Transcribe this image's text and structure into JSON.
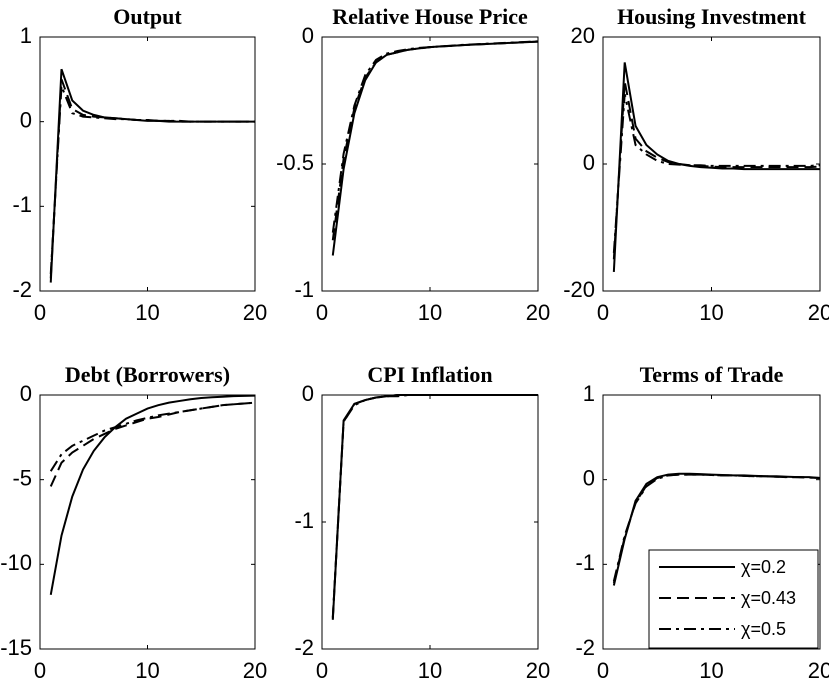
{
  "chart_data": [
    {
      "type": "line",
      "title": "Output",
      "x": [
        1,
        2,
        3,
        4,
        5,
        6,
        7,
        8,
        9,
        10,
        11,
        12,
        13,
        14,
        15,
        16,
        17,
        18,
        19,
        20
      ],
      "xlim": [
        0,
        20
      ],
      "xticks": [
        0,
        10,
        20
      ],
      "ylim": [
        -2,
        1
      ],
      "yticks": [
        -2,
        -1,
        0,
        1
      ],
      "series": [
        {
          "color": "#000000",
          "style": "solid",
          "values": [
            -1.9,
            0.62,
            0.25,
            0.13,
            0.08,
            0.05,
            0.04,
            0.03,
            0.02,
            0.01,
            0.01,
            0,
            0,
            0,
            0,
            0,
            0,
            0,
            0,
            0
          ]
        },
        {
          "color": "#000000",
          "style": "dashed",
          "values": [
            -1.85,
            0.5,
            0.15,
            0.08,
            0.06,
            0.05,
            0.04,
            0.03,
            0.02,
            0.02,
            0.01,
            0.01,
            0,
            0,
            0,
            0,
            0,
            0,
            0,
            0
          ]
        },
        {
          "color": "#000000",
          "style": "dashdot",
          "values": [
            -1.8,
            0.42,
            0.1,
            0.06,
            0.05,
            0.04,
            0.03,
            0.03,
            0.02,
            0.02,
            0.01,
            0.01,
            0.01,
            0,
            0,
            0,
            0,
            0,
            0,
            0
          ]
        }
      ]
    },
    {
      "type": "line",
      "title": "Relative House Price",
      "x": [
        1,
        2,
        3,
        4,
        5,
        6,
        7,
        8,
        9,
        10,
        11,
        12,
        13,
        14,
        15,
        16,
        17,
        18,
        19,
        20
      ],
      "xlim": [
        0,
        20
      ],
      "xticks": [
        0,
        10,
        20
      ],
      "ylim": [
        -1,
        0
      ],
      "yticks": [
        -1,
        -0.5,
        0
      ],
      "series": [
        {
          "color": "#000000",
          "style": "solid",
          "values": [
            -0.86,
            -0.52,
            -0.3,
            -0.17,
            -0.1,
            -0.07,
            -0.06,
            -0.05,
            -0.045,
            -0.04,
            -0.037,
            -0.035,
            -0.032,
            -0.03,
            -0.028,
            -0.026,
            -0.024,
            -0.022,
            -0.02,
            -0.018
          ]
        },
        {
          "color": "#000000",
          "style": "dashed",
          "values": [
            -0.8,
            -0.48,
            -0.28,
            -0.16,
            -0.1,
            -0.07,
            -0.06,
            -0.05,
            -0.045,
            -0.04,
            -0.037,
            -0.035,
            -0.032,
            -0.03,
            -0.028,
            -0.026,
            -0.024,
            -0.022,
            -0.02,
            -0.018
          ]
        },
        {
          "color": "#000000",
          "style": "dashdot",
          "values": [
            -0.77,
            -0.46,
            -0.27,
            -0.15,
            -0.09,
            -0.065,
            -0.055,
            -0.048,
            -0.043,
            -0.04,
            -0.037,
            -0.034,
            -0.031,
            -0.029,
            -0.027,
            -0.025,
            -0.023,
            -0.021,
            -0.019,
            -0.017
          ]
        }
      ]
    },
    {
      "type": "line",
      "title": "Housing Investment",
      "x": [
        1,
        2,
        3,
        4,
        5,
        6,
        7,
        8,
        9,
        10,
        11,
        12,
        13,
        14,
        15,
        16,
        17,
        18,
        19,
        20
      ],
      "xlim": [
        0,
        20
      ],
      "xticks": [
        0,
        10,
        20
      ],
      "ylim": [
        -20,
        20
      ],
      "yticks": [
        -20,
        0,
        20
      ],
      "series": [
        {
          "color": "#000000",
          "style": "solid",
          "values": [
            -17,
            16,
            6,
            3,
            1.5,
            0.5,
            0,
            -0.3,
            -0.5,
            -0.6,
            -0.7,
            -0.7,
            -0.8,
            -0.8,
            -0.8,
            -0.8,
            -0.8,
            -0.8,
            -0.8,
            -0.8
          ]
        },
        {
          "color": "#000000",
          "style": "dashed",
          "values": [
            -15,
            13,
            4,
            2,
            1,
            0.3,
            0,
            -0.2,
            -0.3,
            -0.4,
            -0.5,
            -0.5,
            -0.5,
            -0.5,
            -0.5,
            -0.5,
            -0.5,
            -0.5,
            -0.5,
            -0.4
          ]
        },
        {
          "color": "#000000",
          "style": "dashdot",
          "values": [
            -14,
            11,
            3,
            1.5,
            0.5,
            0,
            -0.1,
            -0.2,
            -0.2,
            -0.3,
            -0.3,
            -0.3,
            -0.3,
            -0.3,
            -0.3,
            -0.3,
            -0.3,
            -0.3,
            -0.3,
            -0.2
          ]
        }
      ]
    },
    {
      "type": "line",
      "title": "Debt (Borrowers)",
      "x": [
        1,
        2,
        3,
        4,
        5,
        6,
        7,
        8,
        9,
        10,
        11,
        12,
        13,
        14,
        15,
        16,
        17,
        18,
        19,
        20
      ],
      "xlim": [
        0,
        20
      ],
      "xticks": [
        0,
        10,
        20
      ],
      "ylim": [
        -15,
        0
      ],
      "yticks": [
        -15,
        -10,
        -5,
        0
      ],
      "series": [
        {
          "color": "#000000",
          "style": "solid",
          "values": [
            -11.8,
            -8.3,
            -6,
            -4.4,
            -3.3,
            -2.5,
            -1.9,
            -1.4,
            -1.1,
            -0.8,
            -0.6,
            -0.45,
            -0.35,
            -0.25,
            -0.18,
            -0.13,
            -0.1,
            -0.07,
            -0.05,
            -0.04
          ]
        },
        {
          "color": "#000000",
          "style": "dashed",
          "values": [
            -5.4,
            -4,
            -3.4,
            -3,
            -2.6,
            -2.3,
            -2,
            -1.8,
            -1.6,
            -1.4,
            -1.3,
            -1.15,
            -1,
            -0.9,
            -0.8,
            -0.7,
            -0.6,
            -0.55,
            -0.5,
            -0.45
          ]
        },
        {
          "color": "#000000",
          "style": "dashdot",
          "values": [
            -4.5,
            -3.5,
            -3,
            -2.7,
            -2.4,
            -2.1,
            -1.9,
            -1.7,
            -1.5,
            -1.35,
            -1.2,
            -1.1,
            -1,
            -0.9,
            -0.8,
            -0.7,
            -0.6,
            -0.55,
            -0.5,
            -0.45
          ]
        }
      ]
    },
    {
      "type": "line",
      "title": "CPI Inflation",
      "x": [
        1,
        2,
        3,
        4,
        5,
        6,
        7,
        8,
        9,
        10,
        11,
        12,
        13,
        14,
        15,
        16,
        17,
        18,
        19,
        20
      ],
      "xlim": [
        0,
        20
      ],
      "xticks": [
        0,
        10,
        20
      ],
      "ylim": [
        -2,
        0
      ],
      "yticks": [
        -2,
        -1,
        0
      ],
      "series": [
        {
          "color": "#000000",
          "style": "solid",
          "values": [
            -1.77,
            -0.2,
            -0.07,
            -0.04,
            -0.02,
            -0.01,
            0,
            0,
            0,
            0,
            0,
            0,
            0,
            0,
            0,
            0,
            0,
            0,
            0,
            0
          ]
        },
        {
          "color": "#000000",
          "style": "dashed",
          "values": [
            -1.76,
            -0.21,
            -0.07,
            -0.04,
            -0.02,
            -0.01,
            0,
            0,
            0,
            0,
            0,
            0,
            0,
            0,
            0,
            0,
            0,
            0,
            0,
            0
          ]
        },
        {
          "color": "#000000",
          "style": "dashdot",
          "values": [
            -1.75,
            -0.21,
            -0.08,
            -0.04,
            -0.02,
            -0.01,
            -0.01,
            0,
            0,
            0,
            0,
            0,
            0,
            0,
            0,
            0,
            0,
            0,
            0,
            0
          ]
        }
      ]
    },
    {
      "type": "line",
      "title": "Terms of Trade",
      "x": [
        1,
        2,
        3,
        4,
        5,
        6,
        7,
        8,
        9,
        10,
        11,
        12,
        13,
        14,
        15,
        16,
        17,
        18,
        19,
        20
      ],
      "xlim": [
        0,
        20
      ],
      "xticks": [
        0,
        10,
        20
      ],
      "ylim": [
        -2,
        1
      ],
      "yticks": [
        -2,
        -1,
        0,
        1
      ],
      "legend": "lower right",
      "series": [
        {
          "name": "χ=0.2",
          "color": "#000000",
          "style": "solid",
          "values": [
            -1.25,
            -0.7,
            -0.25,
            -0.05,
            0.03,
            0.06,
            0.07,
            0.07,
            0.065,
            0.06,
            0.055,
            0.05,
            0.05,
            0.045,
            0.04,
            0.04,
            0.035,
            0.03,
            0.03,
            0.02
          ]
        },
        {
          "name": "χ=0.43",
          "color": "#000000",
          "style": "dashed",
          "values": [
            -1.22,
            -0.68,
            -0.27,
            -0.07,
            0.02,
            0.05,
            0.06,
            0.06,
            0.06,
            0.055,
            0.05,
            0.05,
            0.045,
            0.04,
            0.04,
            0.035,
            0.03,
            0.03,
            0.025,
            0.02
          ]
        },
        {
          "name": "χ=0.5",
          "color": "#000000",
          "style": "dashdot",
          "values": [
            -1.2,
            -0.66,
            -0.28,
            -0.08,
            0.01,
            0.05,
            0.06,
            0.06,
            0.06,
            0.055,
            0.05,
            0.05,
            0.045,
            0.04,
            0.04,
            0.035,
            0.03,
            0.03,
            0.025,
            0.02
          ]
        }
      ]
    }
  ]
}
